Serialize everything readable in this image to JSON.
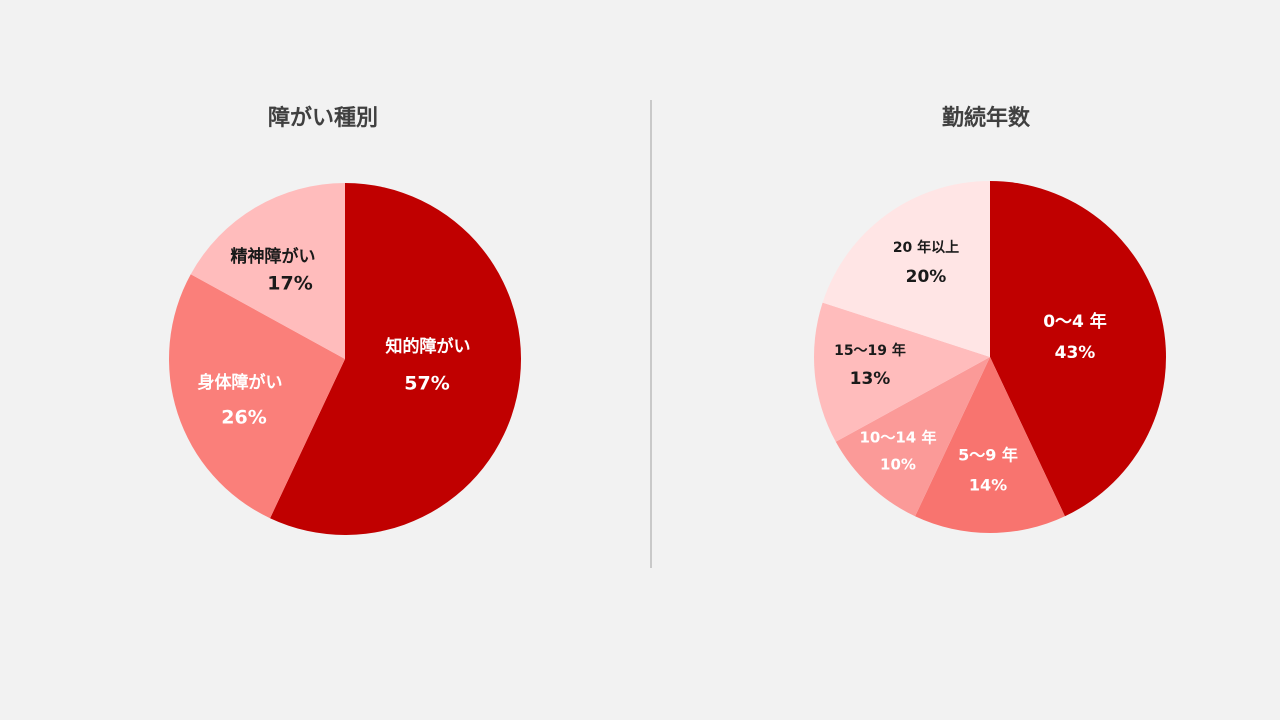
{
  "chart_data": [
    {
      "type": "pie",
      "title": "障がい種別",
      "slices": [
        {
          "label": "知的障がい",
          "value": 57,
          "percent": "57%",
          "color": "#c00000",
          "text_color": "#ffffff"
        },
        {
          "label": "身体障がい",
          "value": 26,
          "percent": "26%",
          "color": "#fa7f7a",
          "text_color": "#ffffff"
        },
        {
          "label": "精神障がい",
          "value": 17,
          "percent": "17%",
          "color": "#ffbcbc",
          "text_color": "#1a1a1a"
        }
      ]
    },
    {
      "type": "pie",
      "title": "勤続年数",
      "slices": [
        {
          "label": "0～4 年",
          "value": 43,
          "percent": "43%",
          "color": "#c00000",
          "text_color": "#ffffff"
        },
        {
          "label": "5～9 年",
          "value": 14,
          "percent": "14%",
          "color": "#f8746f",
          "text_color": "#ffffff"
        },
        {
          "label": "10～14 年",
          "value": 10,
          "percent": "10%",
          "color": "#fb9a98",
          "text_color": "#ffffff"
        },
        {
          "label": "15～19 年",
          "value": 13,
          "percent": "13%",
          "color": "#ffbcbc",
          "text_color": "#1a1a1a"
        },
        {
          "label": "20 年以上",
          "value": 20,
          "percent": "20%",
          "color": "#ffe5e5",
          "text_color": "#1a1a1a"
        }
      ]
    }
  ]
}
